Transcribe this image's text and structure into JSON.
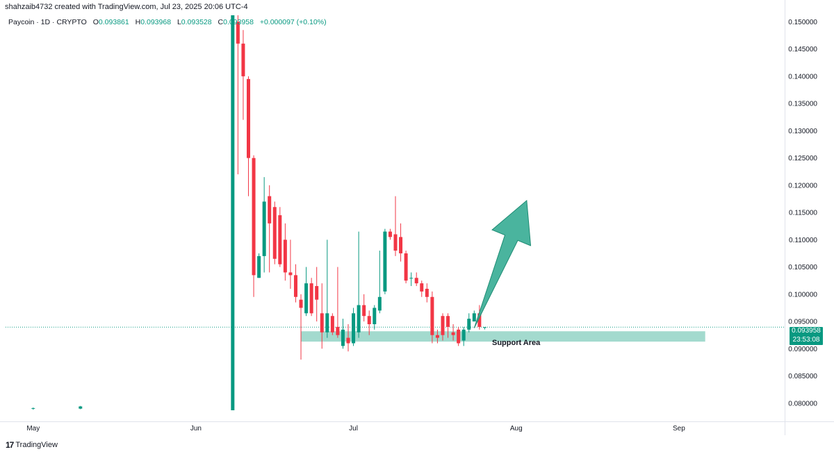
{
  "header": {
    "credit": "shahzaib4732 created with TradingView.com, Jul 23, 2025 20:06 UTC-4"
  },
  "legend": {
    "symbol": "Paycoin · 1D · CRYPTO",
    "open_label": "O",
    "open": "0.093861",
    "high_label": "H",
    "high": "0.093968",
    "low_label": "L",
    "low": "0.093528",
    "close_label": "C",
    "close": "0.093958",
    "change": "+0.000097 (+0.10%)"
  },
  "price_tag": {
    "price": "0.093958",
    "countdown": "23:53:08"
  },
  "annotation": {
    "support_label": "Support Area"
  },
  "footer": {
    "brand": "TradingView",
    "logo_icon": "tradingview-logo-icon"
  },
  "colors": {
    "up": "#089981",
    "down": "#F23645",
    "support": "#9ED8CB",
    "arrow": "#3BAE96"
  },
  "chart_data": {
    "type": "candlestick",
    "y_ticks": [
      "0.080000",
      "0.085000",
      "0.090000",
      "0.095000",
      "0.100000",
      "0.105000",
      "0.110000",
      "0.115000",
      "0.120000",
      "0.125000",
      "0.130000",
      "0.135000",
      "0.140000",
      "0.145000",
      "0.150000"
    ],
    "ylim": [
      0.0787,
      0.1512
    ],
    "x_ticks": [
      "May",
      "Jun",
      "Jul",
      "Aug",
      "Sep"
    ],
    "x_tick_dates": [
      "2025-05-01",
      "2025-06-01",
      "2025-07-01",
      "2025-08-01",
      "2025-09-01"
    ],
    "xlim": [
      "2025-04-26",
      "2025-09-21"
    ],
    "last_price": 0.093958,
    "support_zone": {
      "low": 0.0913,
      "high": 0.0932,
      "from": "2025-06-21",
      "to": "2025-09-06",
      "label": "Support Area"
    },
    "arrow": {
      "from_date": "2025-07-24",
      "from_price": 0.0938,
      "to_date": "2025-08-03",
      "to_price": 0.1172
    },
    "candles": [
      {
        "d": "2025-05-01",
        "o": 0.079,
        "h": 0.0792,
        "l": 0.0788,
        "c": 0.0791
      },
      {
        "d": "2025-05-10",
        "o": 0.079,
        "h": 0.0795,
        "l": 0.0789,
        "c": 0.0794
      },
      {
        "d": "2025-06-08",
        "o": 0.0787,
        "h": 0.1512,
        "l": 0.0787,
        "c": 0.1512
      },
      {
        "d": "2025-06-09",
        "o": 0.15,
        "h": 0.1512,
        "l": 0.122,
        "c": 0.146
      },
      {
        "d": "2025-06-10",
        "o": 0.146,
        "h": 0.1485,
        "l": 0.132,
        "c": 0.14
      },
      {
        "d": "2025-06-11",
        "o": 0.1395,
        "h": 0.14,
        "l": 0.118,
        "c": 0.125
      },
      {
        "d": "2025-06-12",
        "o": 0.125,
        "h": 0.1255,
        "l": 0.0995,
        "c": 0.1035
      },
      {
        "d": "2025-06-13",
        "o": 0.103,
        "h": 0.1075,
        "l": 0.103,
        "c": 0.107
      },
      {
        "d": "2025-06-14",
        "o": 0.107,
        "h": 0.1215,
        "l": 0.104,
        "c": 0.117
      },
      {
        "d": "2025-06-15",
        "o": 0.118,
        "h": 0.12,
        "l": 0.104,
        "c": 0.113
      },
      {
        "d": "2025-06-16",
        "o": 0.116,
        "h": 0.117,
        "l": 0.1055,
        "c": 0.1065
      },
      {
        "d": "2025-06-17",
        "o": 0.1145,
        "h": 0.116,
        "l": 0.105,
        "c": 0.1055
      },
      {
        "d": "2025-06-18",
        "o": 0.11,
        "h": 0.113,
        "l": 0.1025,
        "c": 0.104
      },
      {
        "d": "2025-06-19",
        "o": 0.104,
        "h": 0.11,
        "l": 0.101,
        "c": 0.1035
      },
      {
        "d": "2025-06-20",
        "o": 0.1035,
        "h": 0.1055,
        "l": 0.0985,
        "c": 0.0995
      },
      {
        "d": "2025-06-21",
        "o": 0.099,
        "h": 0.1,
        "l": 0.088,
        "c": 0.0975
      },
      {
        "d": "2025-06-22",
        "o": 0.0965,
        "h": 0.105,
        "l": 0.096,
        "c": 0.102
      },
      {
        "d": "2025-06-23",
        "o": 0.102,
        "h": 0.103,
        "l": 0.096,
        "c": 0.0965
      },
      {
        "d": "2025-06-24",
        "o": 0.1015,
        "h": 0.105,
        "l": 0.095,
        "c": 0.099
      },
      {
        "d": "2025-06-25",
        "o": 0.0965,
        "h": 0.102,
        "l": 0.09,
        "c": 0.093
      },
      {
        "d": "2025-06-26",
        "o": 0.093,
        "h": 0.11,
        "l": 0.092,
        "c": 0.0965
      },
      {
        "d": "2025-06-27",
        "o": 0.096,
        "h": 0.0965,
        "l": 0.0925,
        "c": 0.093
      },
      {
        "d": "2025-06-28",
        "o": 0.094,
        "h": 0.105,
        "l": 0.092,
        "c": 0.0925
      },
      {
        "d": "2025-06-29",
        "o": 0.0905,
        "h": 0.0955,
        "l": 0.09,
        "c": 0.0935
      },
      {
        "d": "2025-06-30",
        "o": 0.092,
        "h": 0.0945,
        "l": 0.0895,
        "c": 0.091
      },
      {
        "d": "2025-07-01",
        "o": 0.091,
        "h": 0.0975,
        "l": 0.0905,
        "c": 0.0965
      },
      {
        "d": "2025-07-02",
        "o": 0.093,
        "h": 0.1115,
        "l": 0.092,
        "c": 0.098
      },
      {
        "d": "2025-07-03",
        "o": 0.098,
        "h": 0.1,
        "l": 0.095,
        "c": 0.096
      },
      {
        "d": "2025-07-04",
        "o": 0.096,
        "h": 0.097,
        "l": 0.0925,
        "c": 0.0945
      },
      {
        "d": "2025-07-05",
        "o": 0.0945,
        "h": 0.098,
        "l": 0.0935,
        "c": 0.0975
      },
      {
        "d": "2025-07-06",
        "o": 0.097,
        "h": 0.108,
        "l": 0.0965,
        "c": 0.0995
      },
      {
        "d": "2025-07-07",
        "o": 0.1005,
        "h": 0.112,
        "l": 0.1,
        "c": 0.1115
      },
      {
        "d": "2025-07-08",
        "o": 0.1115,
        "h": 0.112,
        "l": 0.11,
        "c": 0.1105
      },
      {
        "d": "2025-07-09",
        "o": 0.111,
        "h": 0.118,
        "l": 0.107,
        "c": 0.108
      },
      {
        "d": "2025-07-10",
        "o": 0.1105,
        "h": 0.113,
        "l": 0.106,
        "c": 0.1075
      },
      {
        "d": "2025-07-11",
        "o": 0.1075,
        "h": 0.108,
        "l": 0.102,
        "c": 0.1025
      },
      {
        "d": "2025-07-12",
        "o": 0.103,
        "h": 0.104,
        "l": 0.1015,
        "c": 0.103
      },
      {
        "d": "2025-07-13",
        "o": 0.103,
        "h": 0.104,
        "l": 0.1015,
        "c": 0.102
      },
      {
        "d": "2025-07-14",
        "o": 0.102,
        "h": 0.1025,
        "l": 0.0995,
        "c": 0.1005
      },
      {
        "d": "2025-07-15",
        "o": 0.101,
        "h": 0.102,
        "l": 0.0985,
        "c": 0.0995
      },
      {
        "d": "2025-07-16",
        "o": 0.0995,
        "h": 0.1005,
        "l": 0.091,
        "c": 0.0925
      },
      {
        "d": "2025-07-17",
        "o": 0.0925,
        "h": 0.0935,
        "l": 0.091,
        "c": 0.092
      },
      {
        "d": "2025-07-18",
        "o": 0.096,
        "h": 0.0965,
        "l": 0.0915,
        "c": 0.0925
      },
      {
        "d": "2025-07-19",
        "o": 0.096,
        "h": 0.0965,
        "l": 0.092,
        "c": 0.094
      },
      {
        "d": "2025-07-20",
        "o": 0.093,
        "h": 0.0945,
        "l": 0.0915,
        "c": 0.0925
      },
      {
        "d": "2025-07-21",
        "o": 0.0935,
        "h": 0.094,
        "l": 0.0905,
        "c": 0.091
      },
      {
        "d": "2025-07-22",
        "o": 0.0915,
        "h": 0.094,
        "l": 0.0905,
        "c": 0.0935
      },
      {
        "d": "2025-07-23",
        "o": 0.0935,
        "h": 0.0965,
        "l": 0.093,
        "c": 0.0955
      },
      {
        "d": "2025-07-24",
        "o": 0.095,
        "h": 0.097,
        "l": 0.095,
        "c": 0.0965
      },
      {
        "d": "2025-07-25",
        "o": 0.0965,
        "h": 0.098,
        "l": 0.0935,
        "c": 0.094
      },
      {
        "d": "2025-07-26",
        "o": 0.093861,
        "h": 0.093968,
        "l": 0.093528,
        "c": 0.093958
      }
    ]
  }
}
